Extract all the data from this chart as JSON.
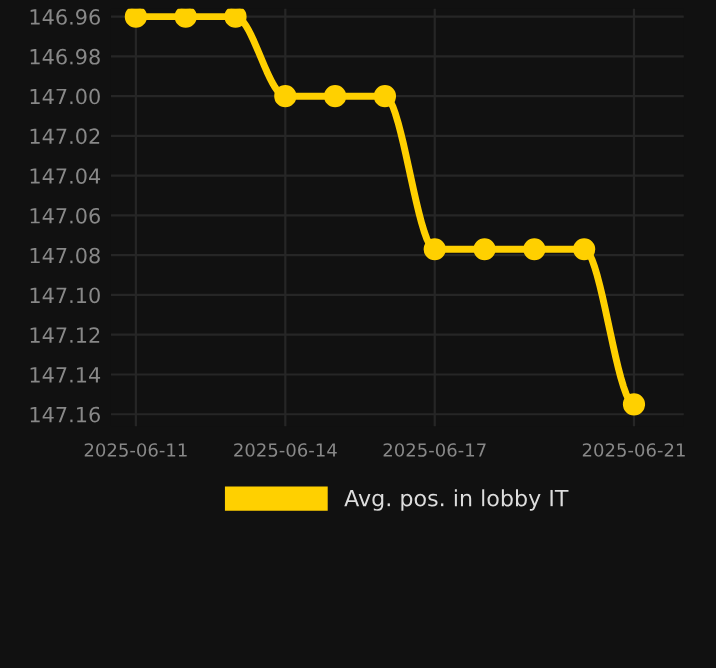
{
  "chart_data": {
    "type": "line",
    "x": [
      "2025-06-11",
      "2025-06-12",
      "2025-06-13",
      "2025-06-14",
      "2025-06-15",
      "2025-06-16",
      "2025-06-17",
      "2025-06-18",
      "2025-06-19",
      "2025-06-20",
      "2025-06-21"
    ],
    "series": [
      {
        "name": "Avg. pos. in lobby IT",
        "color": "#ffd000",
        "values": [
          146.96,
          146.96,
          146.96,
          147.0,
          147.0,
          147.0,
          147.077,
          147.077,
          147.077,
          147.077,
          147.155
        ]
      }
    ],
    "ylim": [
      147.166,
      146.956
    ],
    "yticks": [
      {
        "value": 146.96,
        "label": "146.96"
      },
      {
        "value": 146.98,
        "label": "146.98"
      },
      {
        "value": 147.0,
        "label": "147.00"
      },
      {
        "value": 147.02,
        "label": "147.02"
      },
      {
        "value": 147.04,
        "label": "147.04"
      },
      {
        "value": 147.06,
        "label": "147.06"
      },
      {
        "value": 147.08,
        "label": "147.08"
      },
      {
        "value": 147.1,
        "label": "147.10"
      },
      {
        "value": 147.12,
        "label": "147.12"
      },
      {
        "value": 147.14,
        "label": "147.14"
      },
      {
        "value": 147.16,
        "label": "147.16"
      }
    ],
    "xlim": [
      "2025-06-10T12:00",
      "2025-06-22"
    ],
    "xticks": [
      "2025-06-11",
      "2025-06-14",
      "2025-06-17",
      "2025-06-21"
    ],
    "grid": true,
    "legend": "bottom",
    "marker": "circle",
    "line_style": "solid"
  }
}
